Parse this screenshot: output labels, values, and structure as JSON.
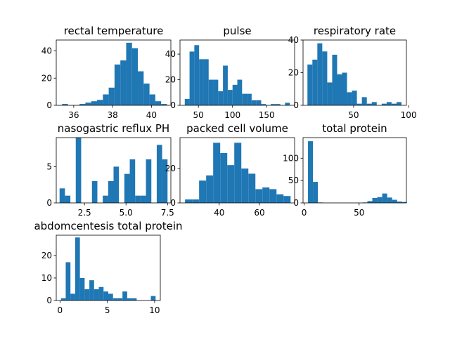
{
  "figure": {
    "background": "#ffffff",
    "bar_color": "#1f77b4"
  },
  "chart_data": [
    {
      "type": "bar",
      "title": "rectal temperature",
      "bins": [
        35.4,
        35.7,
        36.0,
        36.3,
        36.6,
        36.9,
        37.2,
        37.5,
        37.8,
        38.1,
        38.4,
        38.7,
        39.0,
        39.3,
        39.6,
        39.9,
        40.2,
        40.5,
        40.8
      ],
      "counts": [
        1,
        0,
        0,
        1,
        2,
        3,
        4,
        8,
        13,
        30,
        33,
        46,
        42,
        25,
        16,
        8,
        3,
        1,
        0
      ],
      "xlim": [
        35.1,
        41.0
      ],
      "ylim": [
        0,
        48
      ],
      "xticks": [
        36,
        38,
        40
      ],
      "xtick_labels": [
        "36",
        "38",
        "40"
      ],
      "yticks": [
        0,
        20,
        40
      ],
      "ytick_labels": [
        "0",
        "20",
        "40"
      ]
    },
    {
      "type": "bar",
      "title": "pulse",
      "bins": [
        30,
        37,
        44,
        51,
        58,
        65,
        72,
        79,
        86,
        93,
        100,
        107,
        114,
        121,
        128,
        135,
        142,
        149,
        156,
        163,
        170,
        177,
        184
      ],
      "counts": [
        5,
        42,
        47,
        36,
        36,
        20,
        20,
        11,
        31,
        12,
        16,
        20,
        9,
        9,
        4,
        4,
        1,
        0,
        1,
        1,
        0,
        2,
        0
      ],
      "xlim": [
        23,
        191
      ],
      "ylim": [
        0,
        51
      ],
      "xticks": [
        50,
        100,
        150
      ],
      "xtick_labels": [
        "50",
        "100",
        "150"
      ],
      "yticks": [
        0,
        20,
        40
      ],
      "ytick_labels": [
        "0",
        "20",
        "40"
      ]
    },
    {
      "type": "bar",
      "title": "respiratory rate",
      "bins": [
        8,
        12.5,
        17,
        21.5,
        26,
        30.5,
        35,
        39.5,
        44,
        48.5,
        53,
        57.5,
        62,
        66.5,
        71,
        75.5,
        80,
        84.5,
        89,
        93.5
      ],
      "counts": [
        25,
        28,
        38,
        33,
        14,
        31,
        19,
        20,
        8,
        9,
        1,
        5,
        1,
        2,
        0,
        1,
        2,
        1,
        2,
        0
      ],
      "xlim": [
        4,
        98
      ],
      "ylim": [
        0,
        40
      ],
      "xticks": [
        50,
        100
      ],
      "xtick_labels": [
        "50",
        "100"
      ],
      "yticks": [
        0,
        20,
        40
      ],
      "ytick_labels": [
        "0",
        "20",
        "40"
      ]
    },
    {
      "type": "bar",
      "title": "nasogastric reflux PH",
      "bins": [
        1.0,
        1.325,
        1.65,
        1.975,
        2.3,
        2.625,
        2.95,
        3.275,
        3.6,
        3.925,
        4.25,
        4.575,
        4.9,
        5.225,
        5.55,
        5.875,
        6.2,
        6.525,
        6.85,
        7.175,
        7.5
      ],
      "counts": [
        2,
        1,
        0,
        9,
        0,
        0,
        3,
        0,
        1,
        3,
        5,
        0,
        4,
        6,
        1,
        1,
        6,
        0,
        8,
        6,
        0
      ],
      "xlim": [
        0.8,
        7.7
      ],
      "ylim": [
        0,
        9
      ],
      "xticks": [
        2.5,
        5.0,
        7.5
      ],
      "xtick_labels": [
        "2.5",
        "5.0",
        "7.5"
      ],
      "yticks": [
        0,
        5
      ],
      "ytick_labels": [
        "0",
        "5"
      ]
    },
    {
      "type": "bar",
      "title": "packed cell volume",
      "bins": [
        23,
        26.5,
        30,
        33.5,
        37,
        40.5,
        44,
        47.5,
        51,
        54.5,
        58,
        61.5,
        65,
        68.5,
        72,
        75.5
      ],
      "counts": [
        2,
        2,
        13,
        16,
        35,
        29,
        22,
        35,
        20,
        17,
        8,
        9,
        8,
        5,
        4,
        0
      ],
      "xlim": [
        20.5,
        77.5
      ],
      "ylim": [
        0,
        38
      ],
      "xticks": [
        40,
        60
      ],
      "xtick_labels": [
        "40",
        "60"
      ],
      "yticks": [
        0,
        20
      ],
      "ytick_labels": [
        "0",
        "20"
      ]
    },
    {
      "type": "bar",
      "title": "total protein",
      "bins": [
        3.5,
        8,
        12.5,
        17,
        21.5,
        26,
        30.5,
        35,
        39.5,
        44,
        48.5,
        53,
        57.5,
        62,
        66.5,
        71,
        75.5,
        80,
        84.5,
        89
      ],
      "counts": [
        138,
        47,
        1,
        0,
        0,
        0,
        0,
        0,
        0,
        0,
        0,
        1,
        4,
        11,
        13,
        21,
        12,
        7,
        3,
        2
      ],
      "xlim": [
        -1,
        93
      ],
      "ylim": [
        0,
        146
      ],
      "xticks": [
        0,
        50
      ],
      "xtick_labels": [
        "0",
        "50"
      ],
      "yticks": [
        0,
        50,
        100
      ],
      "ytick_labels": [
        "0",
        "50",
        "100"
      ]
    },
    {
      "type": "bar",
      "title": "abdomcentesis total protein",
      "bins": [
        0.1,
        0.6,
        1.1,
        1.6,
        2.1,
        2.6,
        3.1,
        3.6,
        4.1,
        4.6,
        5.1,
        5.6,
        6.1,
        6.6,
        7.1,
        7.6,
        8.1,
        8.6,
        9.1,
        9.6,
        10.1
      ],
      "counts": [
        1,
        17,
        3,
        28,
        10,
        5,
        9,
        5,
        6,
        4,
        3,
        1,
        1,
        4,
        1,
        1,
        0,
        0,
        0,
        2,
        0
      ],
      "xlim": [
        -0.4,
        10.6
      ],
      "ylim": [
        0,
        29
      ],
      "xticks": [
        0,
        5,
        10
      ],
      "xtick_labels": [
        "0",
        "5",
        "10"
      ],
      "yticks": [
        0,
        10,
        20
      ],
      "ytick_labels": [
        "0",
        "10",
        "20"
      ]
    }
  ]
}
